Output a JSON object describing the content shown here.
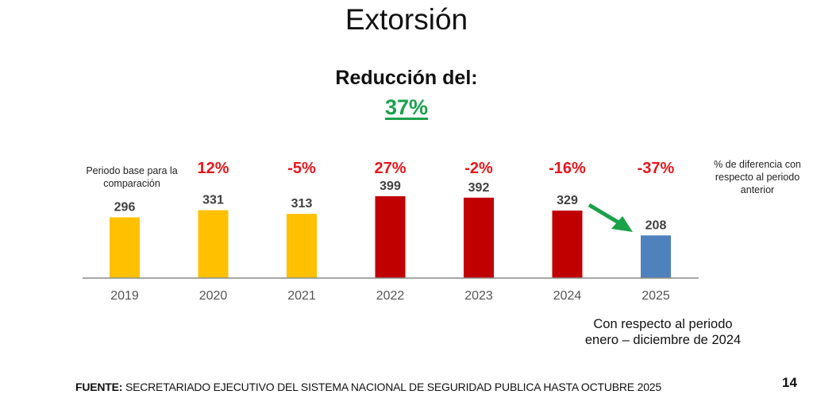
{
  "slide": {
    "title": "Extorsión",
    "subtitle": "Reducción del:",
    "headline_value": "37%",
    "base_note": "Periodo base para la comparación",
    "legend_note": "% de diferencia con respecto al periodo anterior",
    "period_note_line1": "Con respecto al periodo",
    "period_note_line2": "enero – diciembre de 2024",
    "source_label": "FUENTE:",
    "source_text": " SECRETARIADO EJECUTIVO DEL SISTEMA NACIONAL DE SEGURIDAD PUBLICA HASTA OCTUBRE 2025",
    "page_number": "14",
    "colors": {
      "headline": "#1aa14a",
      "percent_change": "#e8161b",
      "base_years": "#ffc000",
      "increase_years": "#c00000",
      "current_year": "#4f81bd",
      "arrow": "#1aa14a"
    }
  },
  "chart_data": {
    "type": "bar",
    "title": "Extorsión",
    "xlabel": "",
    "ylabel": "",
    "categories": [
      "2019",
      "2020",
      "2021",
      "2022",
      "2023",
      "2024",
      "2025"
    ],
    "values": [
      296,
      331,
      313,
      399,
      392,
      329,
      208
    ],
    "value_labels": [
      "296",
      "331",
      "313",
      "399",
      "392",
      "329",
      "208"
    ],
    "percent_change": [
      null,
      "12%",
      "-5%",
      "27%",
      "-2%",
      "-16%",
      "-37%"
    ],
    "bar_colors": [
      "#ffc000",
      "#ffc000",
      "#ffc000",
      "#c00000",
      "#c00000",
      "#c00000",
      "#4f81bd"
    ],
    "ylim": [
      0,
      400
    ],
    "grid": false,
    "legend": "none",
    "annotations": [
      {
        "text": "Periodo base para la comparación",
        "target": "2019"
      },
      {
        "text": "% de diferencia con respecto al periodo anterior",
        "target": "percent_change"
      },
      {
        "type": "arrow",
        "from": "2024",
        "to": "2025",
        "color": "#1aa14a"
      },
      {
        "text": "Con respecto al periodo enero – diciembre de 2024",
        "target": "2025"
      }
    ]
  }
}
